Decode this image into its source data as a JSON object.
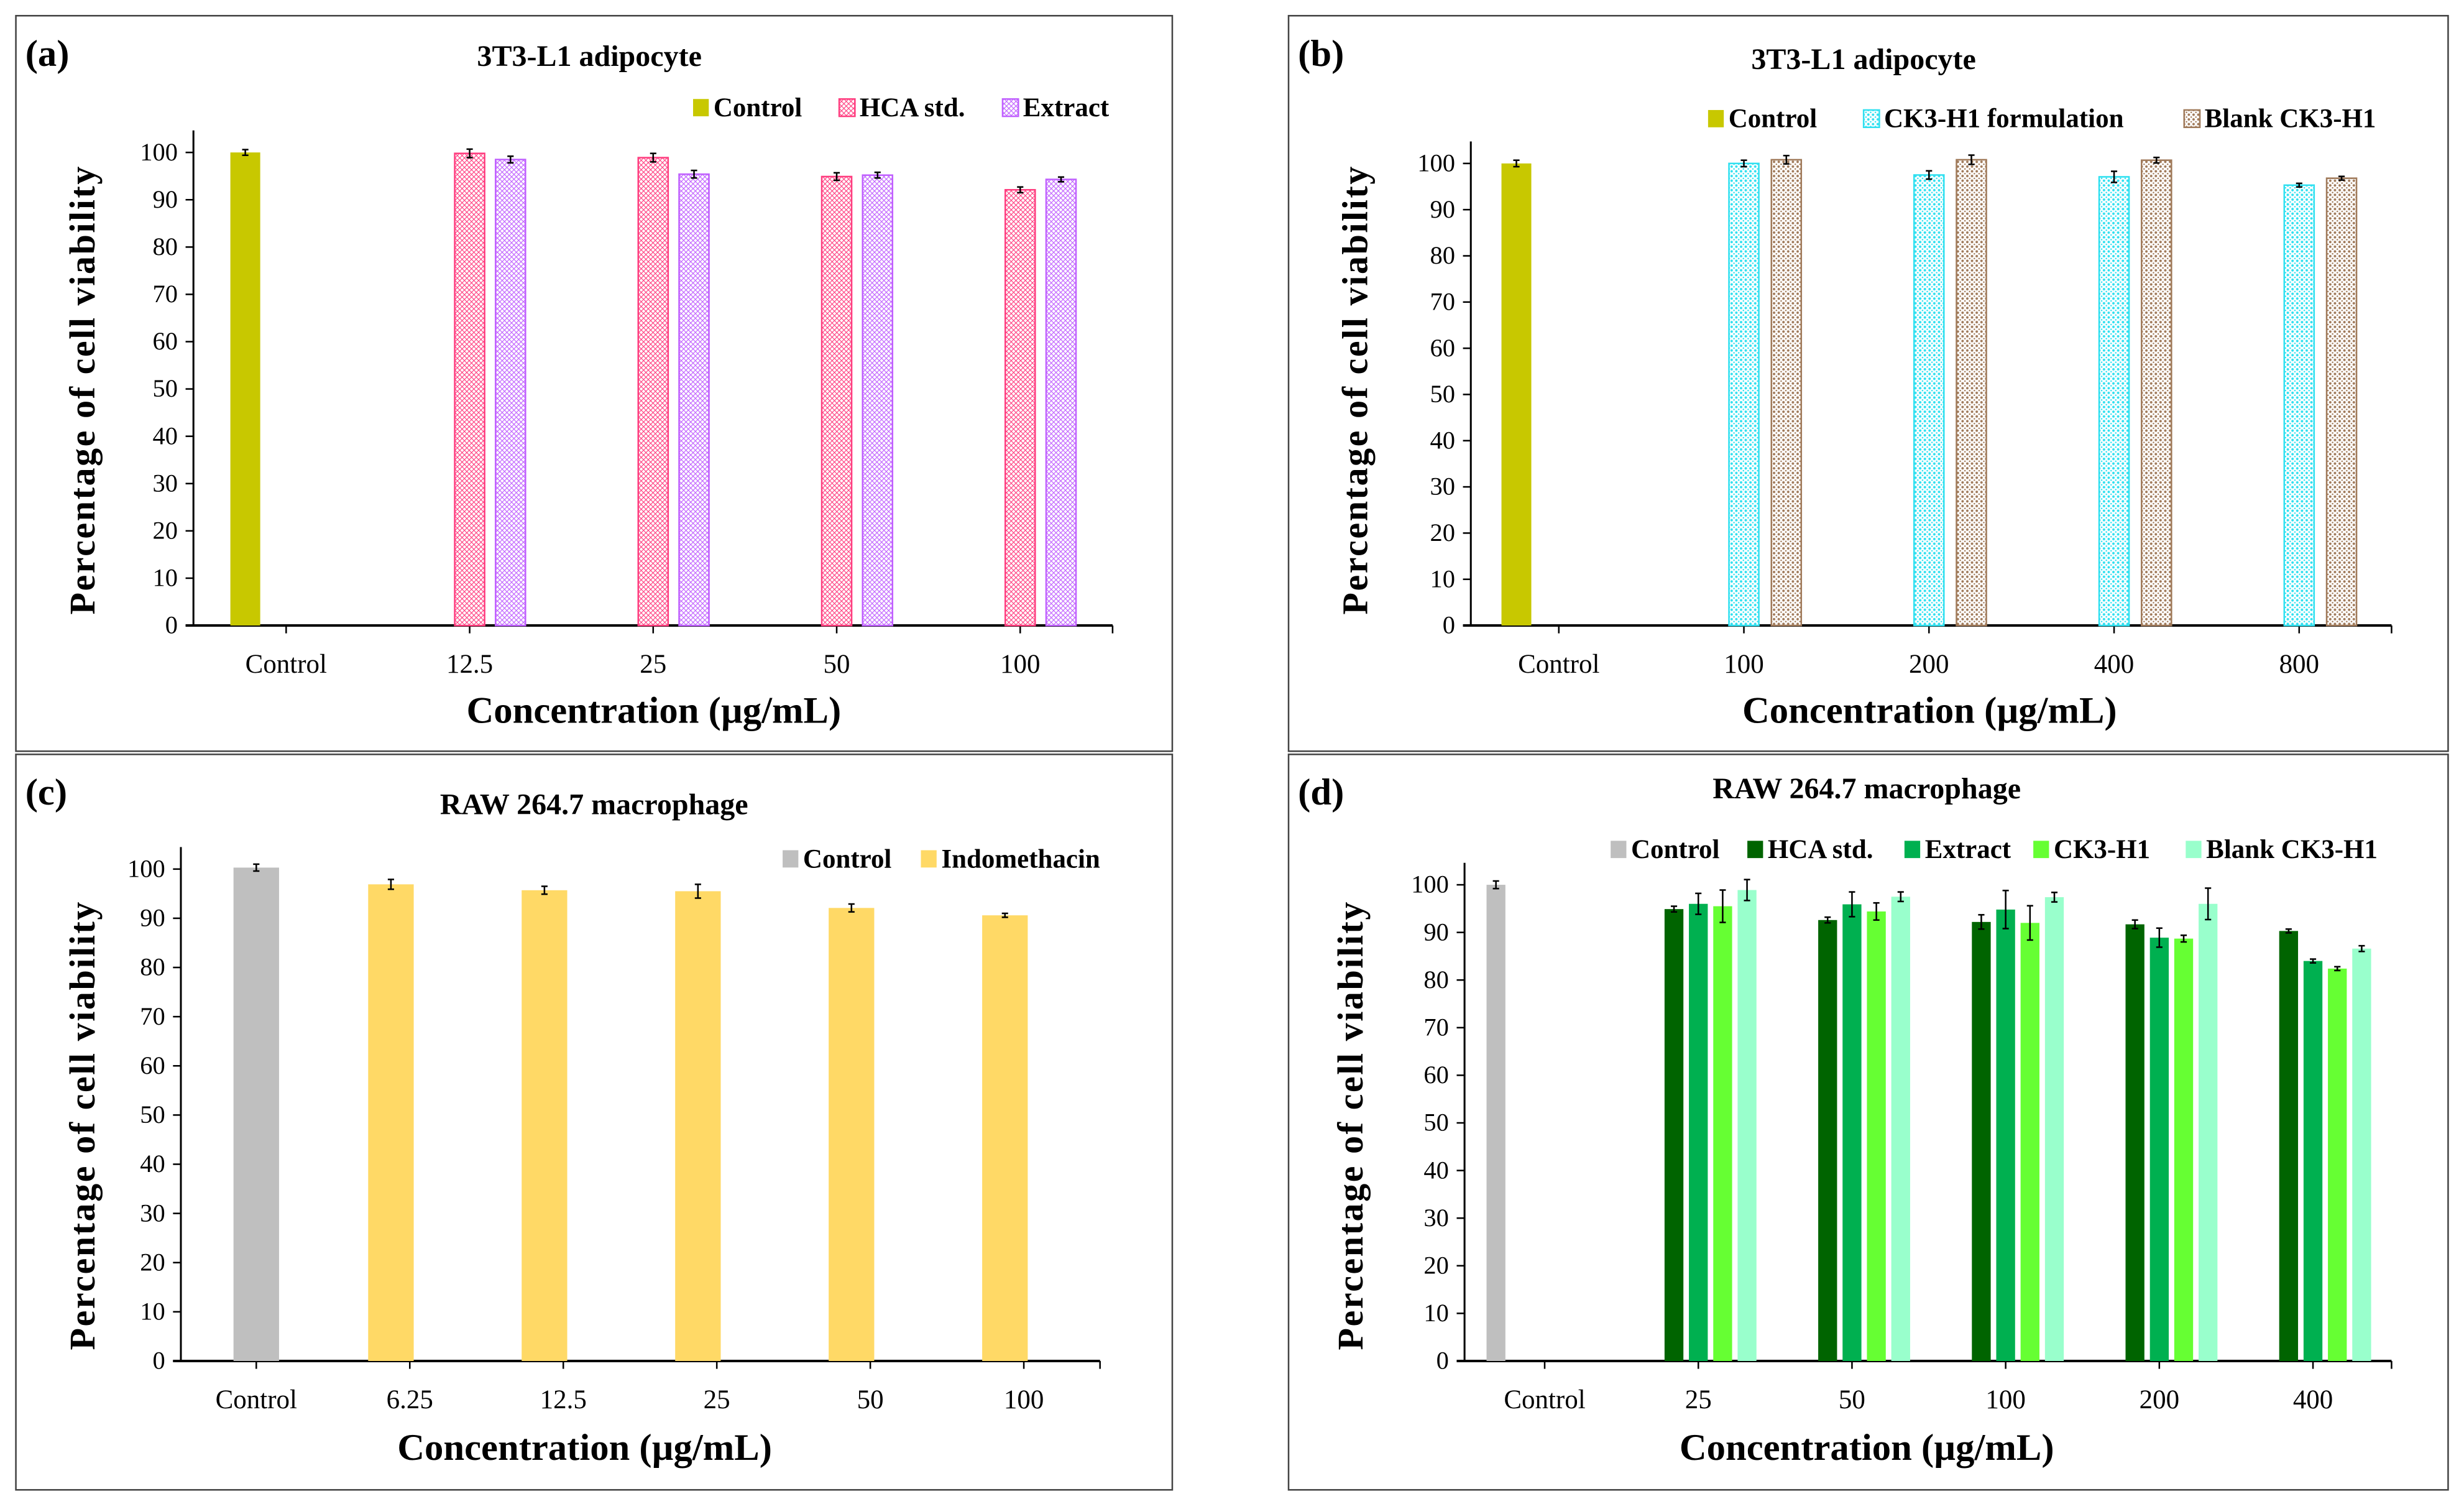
{
  "chart_data": [
    {
      "type": "bar",
      "panel_label": "(a)",
      "title": "3T3-L1 adipocyte",
      "xlabel": "Concentration (µg/mL)",
      "ylabel": "Percentage of cell viability",
      "ylim": [
        0,
        100
      ],
      "yticks": [
        0,
        10,
        20,
        30,
        40,
        50,
        60,
        70,
        80,
        90,
        100
      ],
      "categories": [
        "Control",
        "12.5",
        "25",
        "50",
        "100"
      ],
      "legend_position": "top-right",
      "series": [
        {
          "name": "Control",
          "color": "#c8c800",
          "pattern": "solid",
          "values": [
            100,
            null,
            null,
            null,
            null
          ],
          "errors": [
            0.6,
            null,
            null,
            null,
            null
          ]
        },
        {
          "name": "HCA std.",
          "color": "#ff3d7f",
          "pattern": "hatch",
          "values": [
            null,
            99.8,
            98.9,
            94.9,
            92.1
          ],
          "errors": [
            null,
            0.9,
            0.9,
            0.8,
            0.6
          ]
        },
        {
          "name": "Extract",
          "color": "#c060ff",
          "pattern": "hatch",
          "values": [
            null,
            98.5,
            95.4,
            95.2,
            94.3
          ],
          "errors": [
            null,
            0.7,
            0.8,
            0.6,
            0.5
          ]
        }
      ]
    },
    {
      "type": "bar",
      "panel_label": "(b)",
      "title": "3T3-L1 adipocyte",
      "xlabel": "Concentration (µg/mL)",
      "ylabel": "Percentage of cell viability",
      "ylim": [
        0,
        100
      ],
      "yticks": [
        0,
        10,
        20,
        30,
        40,
        50,
        60,
        70,
        80,
        90,
        100
      ],
      "categories": [
        "Control",
        "100",
        "200",
        "400",
        "800"
      ],
      "legend_position": "top-right",
      "series": [
        {
          "name": "Control",
          "color": "#c8c800",
          "pattern": "solid",
          "values": [
            100,
            null,
            null,
            null,
            null
          ],
          "errors": [
            0.7,
            null,
            null,
            null,
            null
          ]
        },
        {
          "name": "CK3-H1 formulation",
          "color": "#30e0f0",
          "pattern": "dots",
          "values": [
            null,
            100,
            97.5,
            97.1,
            95.3
          ],
          "errors": [
            null,
            0.7,
            0.9,
            1.2,
            0.4
          ]
        },
        {
          "name": "Blank CK3-H1",
          "color": "#a07a5a",
          "pattern": "dots",
          "values": [
            null,
            100.8,
            100.8,
            100.7,
            96.8
          ],
          "errors": [
            null,
            0.9,
            1.0,
            0.6,
            0.4
          ]
        }
      ]
    },
    {
      "type": "bar",
      "panel_label": "(c)",
      "title": "RAW 264.7 macrophage",
      "xlabel": "Concentration (µg/mL)",
      "ylabel": "Percentage of cell viability",
      "ylim": [
        0,
        100
      ],
      "yticks": [
        0,
        10,
        20,
        30,
        40,
        50,
        60,
        70,
        80,
        90,
        100
      ],
      "categories": [
        "Control",
        "6.25",
        "12.5",
        "25",
        "50",
        "100"
      ],
      "legend_position": "top-right",
      "series": [
        {
          "name": "Control",
          "color": "#bfbfbf",
          "pattern": "solid",
          "values": [
            100.3,
            null,
            null,
            null,
            null,
            null
          ],
          "errors": [
            0.7,
            null,
            null,
            null,
            null,
            null
          ]
        },
        {
          "name": "Indomethacin",
          "color": "#ffd966",
          "pattern": "solid",
          "values": [
            null,
            96.9,
            95.7,
            95.5,
            92.1,
            90.6
          ],
          "errors": [
            null,
            1.0,
            0.8,
            1.4,
            0.8,
            0.4
          ]
        }
      ]
    },
    {
      "type": "bar",
      "panel_label": "(d)",
      "title": "RAW 264.7 macrophage",
      "xlabel": "Concentration (µg/mL)",
      "ylabel": "Percentage of cell viability",
      "ylim": [
        0,
        100
      ],
      "yticks": [
        0,
        10,
        20,
        30,
        40,
        50,
        60,
        70,
        80,
        90,
        100
      ],
      "categories": [
        "Control",
        "25",
        "50",
        "100",
        "200",
        "400"
      ],
      "legend_position": "top-right",
      "series": [
        {
          "name": "Control",
          "color": "#bfbfbf",
          "pattern": "solid",
          "values": [
            100,
            null,
            null,
            null,
            null,
            null
          ],
          "errors": [
            0.8,
            null,
            null,
            null,
            null,
            null
          ]
        },
        {
          "name": "HCA std.",
          "color": "#006400",
          "pattern": "solid",
          "values": [
            null,
            94.9,
            92.6,
            92.2,
            91.7,
            90.3
          ],
          "errors": [
            null,
            0.6,
            0.6,
            1.5,
            0.9,
            0.4
          ]
        },
        {
          "name": "Extract",
          "color": "#00b050",
          "pattern": "solid",
          "values": [
            null,
            96.0,
            95.9,
            94.8,
            88.9,
            84.0
          ],
          "errors": [
            null,
            2.2,
            2.6,
            4.0,
            2.0,
            0.4
          ]
        },
        {
          "name": "CK3-H1",
          "color": "#66ff33",
          "pattern": "solid",
          "values": [
            null,
            95.5,
            94.4,
            92.0,
            88.7,
            82.4
          ],
          "errors": [
            null,
            3.4,
            1.8,
            3.6,
            0.7,
            0.4
          ]
        },
        {
          "name": "Blank CK3-H1",
          "color": "#99ffcc",
          "pattern": "solid",
          "values": [
            null,
            98.9,
            97.5,
            97.4,
            96.0,
            86.6
          ],
          "errors": [
            null,
            2.2,
            1.0,
            1.0,
            3.3,
            0.6
          ]
        }
      ]
    }
  ]
}
